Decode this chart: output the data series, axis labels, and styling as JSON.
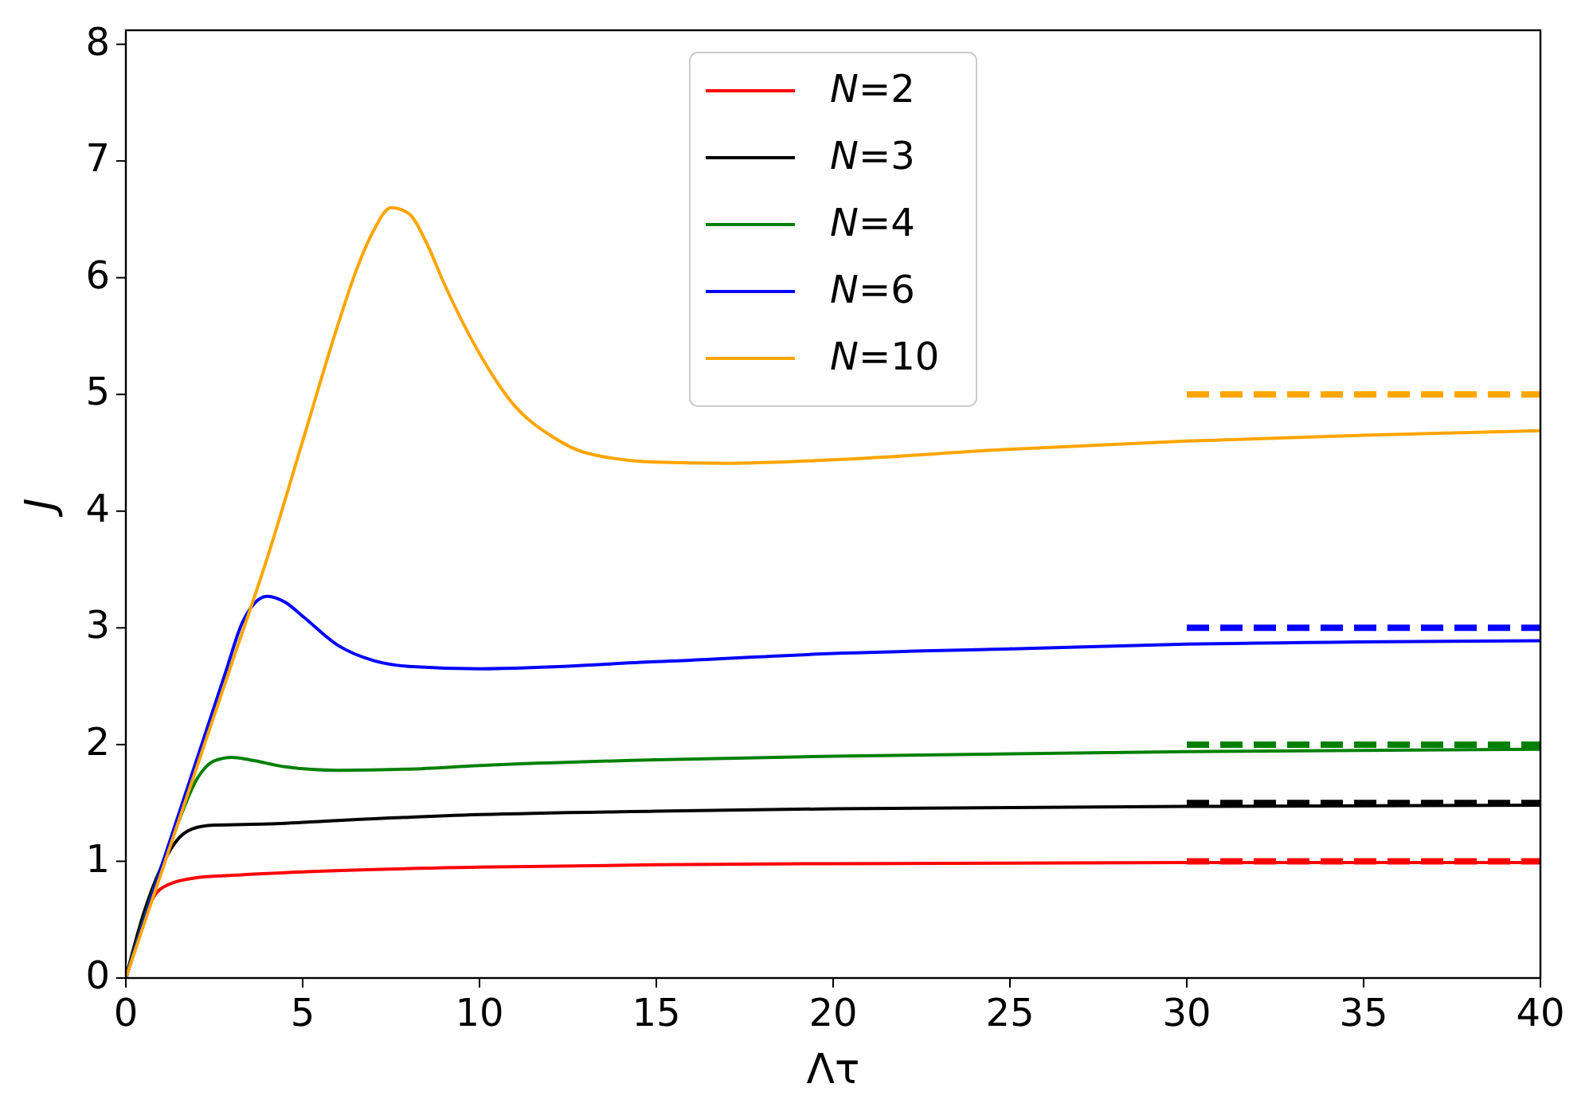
{
  "chart_data": {
    "type": "line",
    "xlabel": "Λτ",
    "ylabel": "J",
    "xlim": [
      0,
      40
    ],
    "ylim": [
      0,
      8.12
    ],
    "xticks": [
      0,
      5,
      10,
      15,
      20,
      25,
      30,
      35,
      40
    ],
    "yticks": [
      0,
      1,
      2,
      3,
      4,
      5,
      6,
      7,
      8
    ],
    "grid": false,
    "legend": "top",
    "line_style": "solid",
    "series": [
      {
        "name": "N=2",
        "color": "#ff0000",
        "x": [
          0.5,
          0.8,
          1.2,
          2,
          3,
          5,
          10,
          15,
          20,
          30,
          40
        ],
        "values": [
          0.5,
          0.7,
          0.8,
          0.86,
          0.88,
          0.91,
          0.95,
          0.97,
          0.98,
          0.99,
          0.99
        ]
      },
      {
        "name": "N=3",
        "color": "#000000",
        "x": [
          0,
          0.5,
          1,
          1.5,
          2,
          2.5,
          4,
          6,
          10,
          15,
          20,
          25,
          30,
          40
        ],
        "values": [
          0,
          0.55,
          0.95,
          1.2,
          1.29,
          1.31,
          1.32,
          1.35,
          1.4,
          1.43,
          1.45,
          1.46,
          1.47,
          1.48
        ]
      },
      {
        "name": "N=4",
        "color": "#008000",
        "x": [
          0,
          1,
          1.5,
          2,
          2.5,
          3,
          3.5,
          4.5,
          6,
          8,
          10,
          15,
          20,
          30,
          40
        ],
        "values": [
          0,
          0.95,
          1.35,
          1.7,
          1.86,
          1.89,
          1.87,
          1.81,
          1.78,
          1.79,
          1.82,
          1.87,
          1.9,
          1.94,
          1.96
        ]
      },
      {
        "name": "N=6",
        "color": "#0000ff",
        "x": [
          0,
          1,
          2.8,
          3.3,
          4,
          4.5,
          5,
          6,
          7,
          8,
          10,
          15,
          20,
          25,
          30,
          40
        ],
        "values": [
          0,
          0.95,
          2.6,
          3.05,
          3.27,
          3.22,
          3.1,
          2.85,
          2.72,
          2.67,
          2.65,
          2.71,
          2.78,
          2.82,
          2.86,
          2.89
        ]
      },
      {
        "name": "N=10",
        "color": "#ffa500",
        "x": [
          0,
          2,
          3,
          4,
          5,
          6,
          6.5,
          7,
          7.5,
          8,
          8.5,
          9,
          10,
          11,
          12,
          13,
          15,
          17,
          20,
          25,
          30,
          35,
          40
        ],
        "values": [
          0,
          1.8,
          2.7,
          3.6,
          4.6,
          5.6,
          6.05,
          6.4,
          6.6,
          6.55,
          6.3,
          5.95,
          5.35,
          4.9,
          4.65,
          4.5,
          4.42,
          4.41,
          4.44,
          4.53,
          4.6,
          4.65,
          4.69
        ]
      },
      {
        "color": "#ff0000",
        "line_style": "dashed",
        "x": [
          30,
          40
        ],
        "values": [
          1,
          1
        ]
      },
      {
        "color": "#000000",
        "line_style": "dashed",
        "x": [
          30,
          40
        ],
        "values": [
          1.5,
          1.5
        ]
      },
      {
        "color": "#008000",
        "line_style": "dashed",
        "x": [
          30,
          40
        ],
        "values": [
          2,
          2
        ]
      },
      {
        "color": "#0000ff",
        "line_style": "dashed",
        "x": [
          30,
          40
        ],
        "values": [
          3,
          3
        ]
      },
      {
        "color": "#ffa500",
        "line_style": "dashed",
        "x": [
          30,
          40
        ],
        "values": [
          5,
          5
        ]
      }
    ]
  }
}
